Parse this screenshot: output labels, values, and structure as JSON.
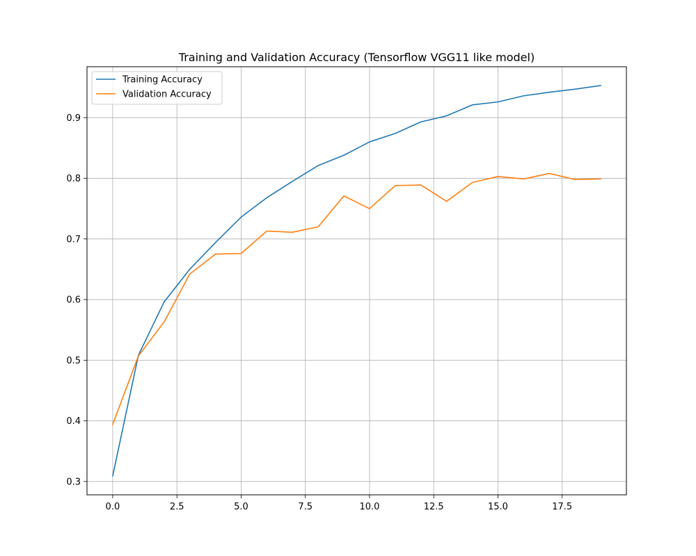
{
  "chart_data": {
    "type": "line",
    "title": "Training and Validation Accuracy (Tensorflow VGG11 like model)",
    "xlabel": "",
    "ylabel": "",
    "x": [
      0,
      1,
      2,
      3,
      4,
      5,
      6,
      7,
      8,
      9,
      10,
      11,
      12,
      13,
      14,
      15,
      16,
      17,
      18,
      19
    ],
    "xlim": [
      -1.0,
      20.0
    ],
    "ylim": [
      0.278,
      0.984
    ],
    "xticks": [
      0.0,
      2.5,
      5.0,
      7.5,
      10.0,
      12.5,
      15.0,
      17.5
    ],
    "xtick_labels": [
      "0.0",
      "2.5",
      "5.0",
      "7.5",
      "10.0",
      "12.5",
      "15.0",
      "17.5"
    ],
    "yticks": [
      0.3,
      0.4,
      0.5,
      0.6,
      0.7,
      0.8,
      0.9
    ],
    "ytick_labels": [
      "0.3",
      "0.4",
      "0.5",
      "0.6",
      "0.7",
      "0.8",
      "0.9"
    ],
    "grid": true,
    "legend_position": "upper-left",
    "series": [
      {
        "name": "Training Accuracy",
        "color": "#1f77b4",
        "values": [
          0.309,
          0.508,
          0.596,
          0.65,
          0.694,
          0.736,
          0.768,
          0.795,
          0.821,
          0.838,
          0.86,
          0.874,
          0.893,
          0.903,
          0.921,
          0.926,
          0.936,
          0.942,
          0.947,
          0.953
        ]
      },
      {
        "name": "Validation Accuracy",
        "color": "#ff7f0e",
        "values": [
          0.394,
          0.507,
          0.563,
          0.642,
          0.675,
          0.676,
          0.713,
          0.711,
          0.72,
          0.771,
          0.75,
          0.788,
          0.789,
          0.762,
          0.793,
          0.803,
          0.799,
          0.808,
          0.798,
          0.799
        ]
      }
    ]
  }
}
